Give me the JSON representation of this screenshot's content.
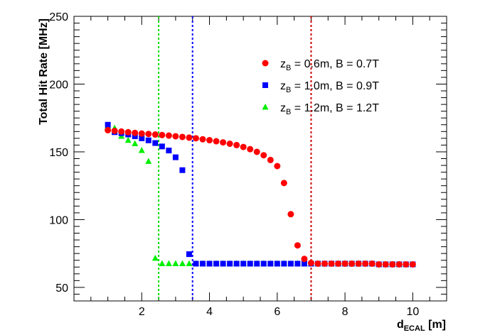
{
  "chart_data": {
    "type": "scatter",
    "title": "",
    "xlabel": {
      "main": "d",
      "sub": "ECAL",
      "unit": " [m]"
    },
    "ylabel": "Total Hit Rate [MHz]",
    "xlim": [
      0,
      11
    ],
    "ylim": [
      40,
      250
    ],
    "x_ticks": [
      2,
      4,
      6,
      8,
      10
    ],
    "y_ticks": [
      50,
      100,
      150,
      200,
      250
    ],
    "grid": false,
    "legend_position": "top-right",
    "vlines": [
      {
        "x": 2.5,
        "color": "#00dd00"
      },
      {
        "x": 3.5,
        "color": "#0000ff"
      },
      {
        "x": 7.0,
        "color": "#cc0000"
      }
    ],
    "series": [
      {
        "name": "z_B = 0.6m, B = 0.7T",
        "legend": {
          "a": "z",
          "sub": "B",
          "b": " = 0.6m, B = 0.7T"
        },
        "marker": "circle",
        "color": "#ff0000",
        "x": [
          1.0,
          1.2,
          1.4,
          1.6,
          1.8,
          2.0,
          2.2,
          2.4,
          2.6,
          2.8,
          3.0,
          3.2,
          3.4,
          3.6,
          3.8,
          4.0,
          4.2,
          4.4,
          4.6,
          4.8,
          5.0,
          5.2,
          5.4,
          5.6,
          5.8,
          6.0,
          6.2,
          6.4,
          6.6,
          6.8,
          7.0,
          7.2,
          7.4,
          7.6,
          7.8,
          8.0,
          8.2,
          8.4,
          8.6,
          8.8,
          9.0,
          9.2,
          9.4,
          9.6,
          9.8,
          10.0
        ],
        "y": [
          166,
          165.5,
          165,
          164.5,
          164,
          163.5,
          163.2,
          162.8,
          162.4,
          162,
          161.5,
          161,
          160.5,
          160,
          159.3,
          158.6,
          157.8,
          157,
          156,
          155,
          153.6,
          152,
          150,
          147.5,
          144,
          139.5,
          127,
          104,
          81,
          71,
          68,
          67.5,
          67.5,
          67.5,
          67.5,
          67.5,
          67.5,
          67.5,
          67.5,
          67.5,
          67,
          67,
          67,
          67,
          67,
          67
        ]
      },
      {
        "name": "z_B = 1.0m, B = 0.9T",
        "legend": {
          "a": "z",
          "sub": "B",
          "b": " = 1.0m, B = 0.9T"
        },
        "marker": "square",
        "color": "#0000ff",
        "x": [
          1.0,
          1.2,
          1.4,
          1.6,
          1.8,
          2.0,
          2.2,
          2.4,
          2.6,
          2.8,
          3.0,
          3.2,
          3.4,
          3.6,
          3.8,
          4.0,
          4.2,
          4.4,
          4.6,
          4.8,
          5.0,
          5.2,
          5.4,
          5.6,
          5.8,
          6.0,
          6.2,
          6.4,
          6.6,
          6.8,
          7.0,
          7.2,
          7.4,
          7.6,
          7.8,
          8.0,
          8.2,
          8.4,
          8.6,
          8.8,
          9.0,
          9.2,
          9.4,
          9.6,
          9.8,
          10.0
        ],
        "y": [
          170,
          164.5,
          163.8,
          162.8,
          161.5,
          160,
          158.5,
          156.5,
          154,
          151,
          146,
          136.5,
          74.5,
          67.5,
          67.5,
          67.5,
          67.5,
          67.5,
          67.5,
          67.5,
          67.5,
          67.5,
          67.5,
          67.5,
          67.5,
          67.5,
          67.5,
          67.5,
          67.5,
          67.5,
          67.5,
          67.5,
          67.5,
          67.5,
          67.5,
          67.5,
          67.5,
          67.5,
          67.5,
          67.5,
          67,
          67,
          67,
          67,
          67,
          67
        ]
      },
      {
        "name": "z_B = 1.2m, B = 1.2T",
        "legend": {
          "a": "z",
          "sub": "B",
          "b": " = 1.2m, B = 1.2T"
        },
        "marker": "triangle",
        "color": "#00ee00",
        "x": [
          1.0,
          1.2,
          1.4,
          1.6,
          1.8,
          2.0,
          2.2,
          2.4,
          2.6,
          2.8,
          3.0,
          3.2,
          3.4,
          3.6,
          3.8,
          4.0,
          4.2,
          4.4,
          4.6,
          4.8,
          5.0,
          5.2,
          5.4,
          5.6,
          5.8,
          6.0,
          6.2,
          6.4,
          6.6,
          6.8,
          7.0,
          7.2,
          7.4,
          7.6,
          7.8,
          8.0,
          8.2,
          8.4,
          8.6,
          8.8,
          9.0,
          9.2,
          9.4,
          9.6,
          9.8,
          10.0
        ],
        "y": [
          169,
          167.5,
          161.5,
          158.5,
          156,
          151,
          143,
          71.5,
          67.5,
          67.5,
          67.5,
          67.5,
          67.5,
          67.5,
          67.5,
          67.5,
          67.5,
          67.5,
          67.5,
          67.5,
          67.5,
          67.5,
          67.5,
          67.5,
          67.5,
          67.5,
          67.5,
          67.5,
          67.5,
          67.5,
          67.5,
          67.5,
          67.5,
          67.5,
          67.5,
          67.5,
          67.5,
          67.5,
          67.5,
          67.5,
          67,
          67,
          67,
          67,
          67,
          67
        ]
      }
    ]
  }
}
